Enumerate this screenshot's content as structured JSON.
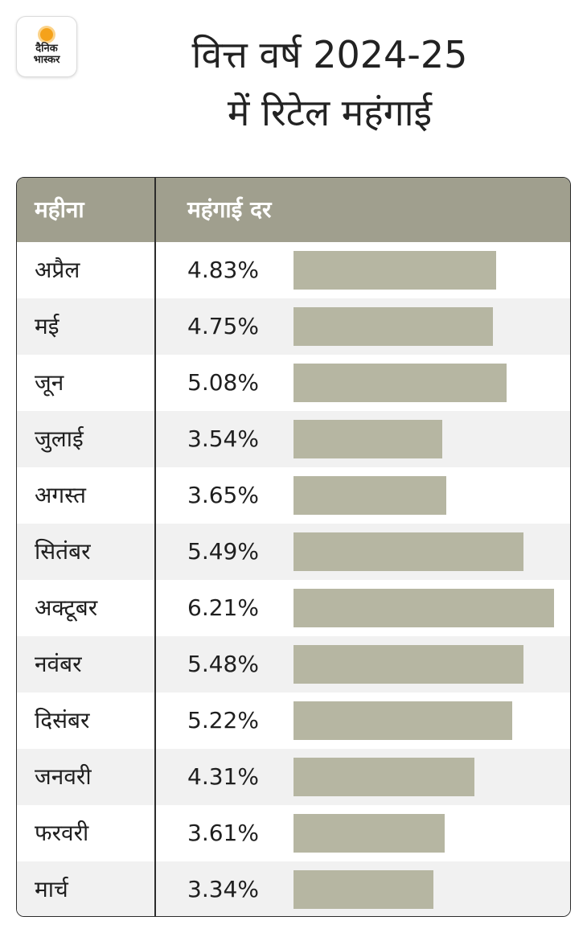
{
  "logo": {
    "line1": "दैनिक",
    "line2": "भास्कर",
    "sun_color": "#f5a21a"
  },
  "title_lines": [
    "वित्त वर्ष 2024-25",
    "में रिटेल महंगाई"
  ],
  "colors": {
    "header_bg": "#a09f8e",
    "bar": "#b6b6a2",
    "stripe": "#f1f1f1"
  },
  "chart_data": {
    "type": "bar",
    "orientation": "horizontal",
    "title": "वित्त वर्ष 2024-25 में रिटेल महंगाई",
    "column_headers": [
      "महीना",
      "महंगाई दर"
    ],
    "categories": [
      "अप्रैल",
      "मई",
      "जून",
      "जुलाई",
      "अगस्त",
      "सितंबर",
      "अक्टूबर",
      "नवंबर",
      "दिसंबर",
      "जनवरी",
      "फरवरी",
      "मार्च"
    ],
    "values": [
      4.83,
      4.75,
      5.08,
      3.54,
      3.65,
      5.49,
      6.21,
      5.48,
      5.22,
      4.31,
      3.61,
      3.34
    ],
    "value_labels": [
      "4.83%",
      "4.75%",
      "5.08%",
      "3.54%",
      "3.65%",
      "5.49%",
      "6.21%",
      "5.48%",
      "5.22%",
      "4.31%",
      "3.61%",
      "3.34%"
    ],
    "unit": "%",
    "xlim": [
      0,
      6.21
    ]
  }
}
